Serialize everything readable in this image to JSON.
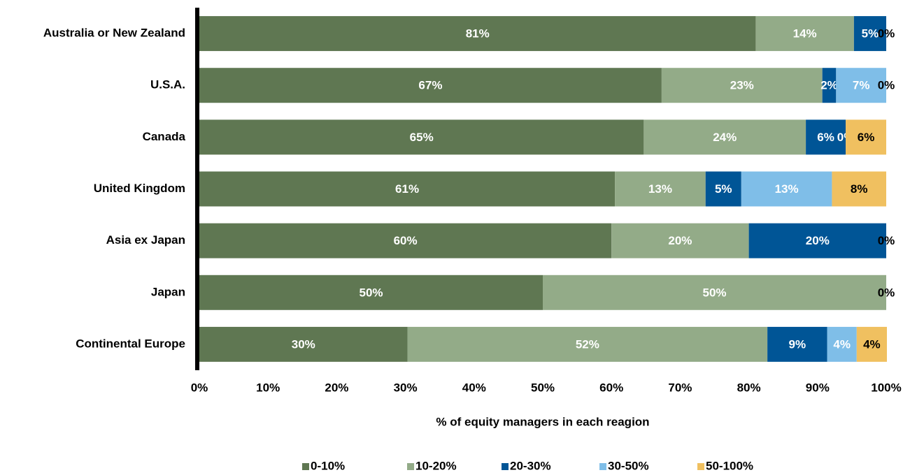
{
  "chart_data": {
    "type": "stacked-barh",
    "xlabel": "% of equity managers in each reagion",
    "categories": [
      "Australia or New Zealand",
      "U.S.A.",
      "Canada",
      "United Kingdom",
      "Asia ex Japan",
      "Japan",
      "Continental Europe"
    ],
    "series": [
      {
        "name": "0-10%",
        "color": "#5f7752",
        "label_color": "#ffffff",
        "values": [
          81,
          67.3,
          64.7,
          60.5,
          60,
          50,
          30.3
        ],
        "value_labels": [
          "81%",
          "67%",
          "65%",
          "61%",
          "60%",
          "50%",
          "30%"
        ]
      },
      {
        "name": "10-20%",
        "color": "#93ab88",
        "label_color": "#ffffff",
        "values": [
          14.3,
          23.4,
          23.6,
          13.2,
          20,
          50,
          52.4
        ],
        "value_labels": [
          "14%",
          "23%",
          "24%",
          "13%",
          "20%",
          "50%",
          "52%"
        ]
      },
      {
        "name": "20-30%",
        "color": "#005596",
        "label_color": "#ffffff",
        "values": [
          4.7,
          2.0,
          5.8,
          5.2,
          20,
          null,
          8.7
        ],
        "value_labels": [
          "5%",
          "2%",
          "6%",
          "5%",
          "20%",
          null,
          "9%"
        ]
      },
      {
        "name": "30-50%",
        "color": "#7fbee8",
        "label_color": "#ffffff",
        "values": [
          null,
          7.3,
          0,
          13.2,
          null,
          null,
          4.3
        ],
        "value_labels": [
          null,
          "7%",
          "0%",
          "13%",
          null,
          null,
          "4%"
        ]
      },
      {
        "name": "50-100%",
        "color": "#f0c060",
        "label_color": "#000000",
        "values": [
          0,
          0,
          5.9,
          7.9,
          0,
          0,
          4.4
        ],
        "value_labels": [
          "0%",
          "0%",
          "6%",
          "8%",
          "0%",
          "0%",
          "4%"
        ]
      }
    ],
    "xlim": [
      0,
      100
    ],
    "xticks": [
      {
        "value": 0,
        "label": "0%"
      },
      {
        "value": 10,
        "label": "10%"
      },
      {
        "value": 20,
        "label": "20%"
      },
      {
        "value": 30,
        "label": "30%"
      },
      {
        "value": 40,
        "label": "40%"
      },
      {
        "value": 50,
        "label": "50%"
      },
      {
        "value": 60,
        "label": "60%"
      },
      {
        "value": 70,
        "label": "70%"
      },
      {
        "value": 80,
        "label": "80%"
      },
      {
        "value": 90,
        "label": "90%"
      },
      {
        "value": 100,
        "label": "100%"
      }
    ],
    "grid": false,
    "legend": "bottom"
  }
}
